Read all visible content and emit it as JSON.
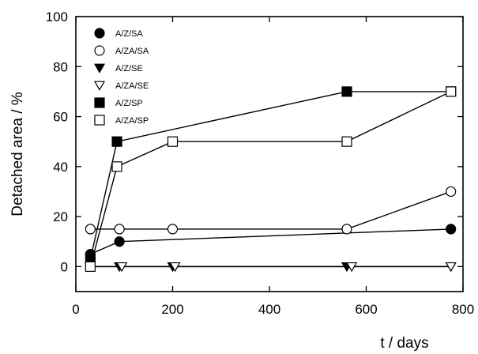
{
  "chart_data": {
    "type": "line",
    "xlabel": "t / days",
    "ylabel": "Detached area / %",
    "xlim": [
      0,
      800
    ],
    "ylim": [
      -10,
      100
    ],
    "xticks": [
      0,
      200,
      400,
      600,
      800
    ],
    "yticks": [
      0,
      20,
      40,
      60,
      80,
      100
    ],
    "grid": false,
    "legend_position": "top-left",
    "series": [
      {
        "name": "A/Z/SA",
        "marker": "circle",
        "fill": "filled",
        "x": [
          30,
          90,
          775
        ],
        "y": [
          5,
          10,
          15
        ]
      },
      {
        "name": "A/ZA/SA",
        "marker": "circle",
        "fill": "open",
        "x": [
          30,
          90,
          200,
          560,
          775
        ],
        "y": [
          15,
          15,
          15,
          15,
          30
        ]
      },
      {
        "name": "A/Z/SE",
        "marker": "triangle-down",
        "fill": "filled",
        "x": [
          30,
          90,
          200,
          560,
          775
        ],
        "y": [
          0,
          0,
          0,
          0,
          0
        ]
      },
      {
        "name": "A/ZA/SE",
        "marker": "triangle-down",
        "fill": "open",
        "x": [
          30,
          95,
          205,
          570,
          775
        ],
        "y": [
          0,
          0,
          0,
          0,
          0
        ]
      },
      {
        "name": "A/Z/SP",
        "marker": "square",
        "fill": "filled",
        "x": [
          30,
          85,
          560,
          775
        ],
        "y": [
          3,
          50,
          70,
          70
        ]
      },
      {
        "name": "A/ZA/SP",
        "marker": "square",
        "fill": "open",
        "x": [
          30,
          85,
          200,
          560,
          775
        ],
        "y": [
          0,
          40,
          50,
          50,
          70
        ]
      }
    ]
  }
}
